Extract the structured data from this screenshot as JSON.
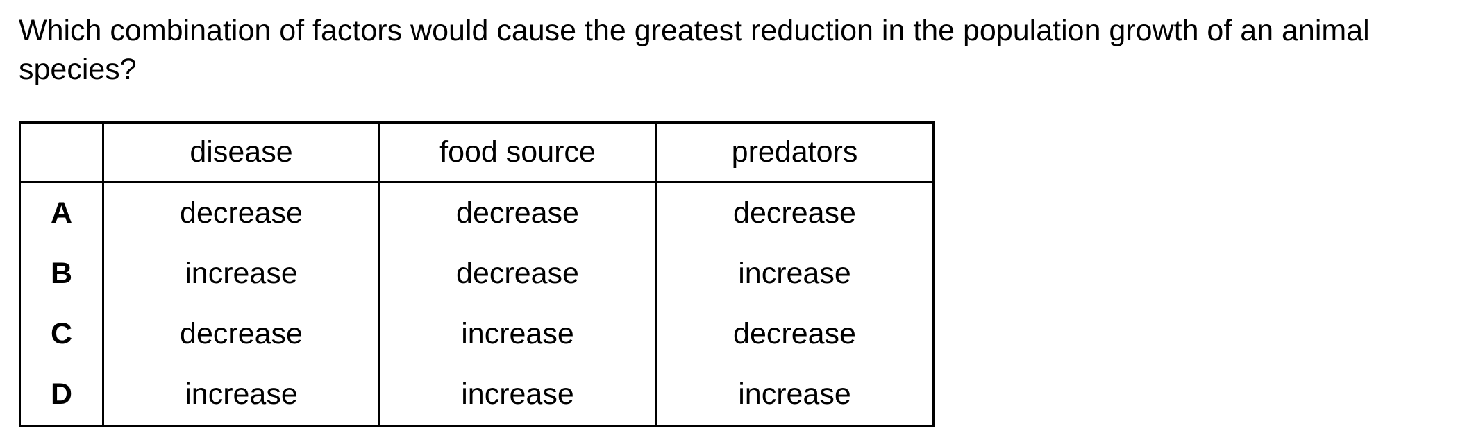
{
  "question": {
    "text": "Which combination of factors would cause the greatest reduction in the population growth of an animal species?"
  },
  "table": {
    "headers": [
      "",
      "disease",
      "food source",
      "predators"
    ],
    "rows": [
      {
        "option": "A",
        "disease": "decrease",
        "food_source": "decrease",
        "predators": "decrease"
      },
      {
        "option": "B",
        "disease": "increase",
        "food_source": "decrease",
        "predators": "increase"
      },
      {
        "option": "C",
        "disease": "decrease",
        "food_source": "increase",
        "predators": "decrease"
      },
      {
        "option": "D",
        "disease": "increase",
        "food_source": "increase",
        "predators": "increase"
      }
    ]
  }
}
